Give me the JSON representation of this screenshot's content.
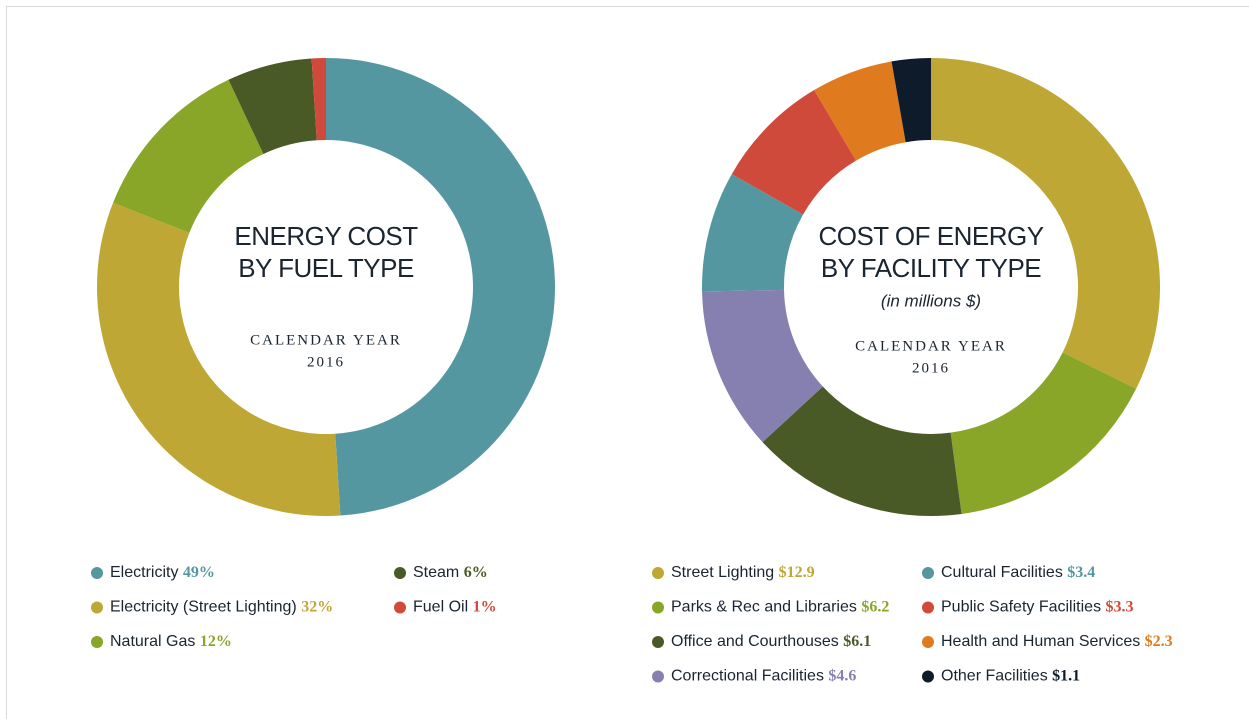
{
  "chart_data": [
    {
      "type": "pie",
      "title": [
        "ENERGY COST",
        "BY FUEL TYPE"
      ],
      "subtitle": [
        "CALENDAR YEAR",
        "2016"
      ],
      "categories": [
        "Electricity",
        "Electricity (Street Lighting)",
        "Natural Gas",
        "Steam",
        "Fuel Oil"
      ],
      "values": [
        49,
        32,
        12,
        6,
        1
      ],
      "value_labels": [
        "49%",
        "32%",
        "12%",
        "6%",
        "1%"
      ],
      "colors": [
        "#5597a0",
        "#bea735",
        "#89a628",
        "#4a5a27",
        "#d04a3c"
      ]
    },
    {
      "type": "pie",
      "title": [
        "COST OF ENERGY",
        "BY FACILITY TYPE"
      ],
      "note": "(in millions $)",
      "subtitle": [
        "CALENDAR YEAR",
        "2016"
      ],
      "categories": [
        "Street Lighting",
        "Parks & Rec and Libraries",
        "Office and Courthouses",
        "Correctional Facilities",
        "Cultural Facilities",
        "Public Safety Facilities",
        "Health and Human Services",
        "Other Facilities"
      ],
      "values": [
        12.9,
        6.2,
        6.1,
        4.6,
        3.4,
        3.3,
        2.3,
        1.1
      ],
      "value_labels": [
        "$12.9",
        "$6.2",
        "$6.1",
        "$4.6",
        "$3.4",
        "$3.3",
        "$2.3",
        "$1.1"
      ],
      "colors": [
        "#bea735",
        "#89a628",
        "#4a5a27",
        "#8580b0",
        "#5597a0",
        "#d04a3c",
        "#e07a1e",
        "#0d1b2a"
      ]
    }
  ]
}
